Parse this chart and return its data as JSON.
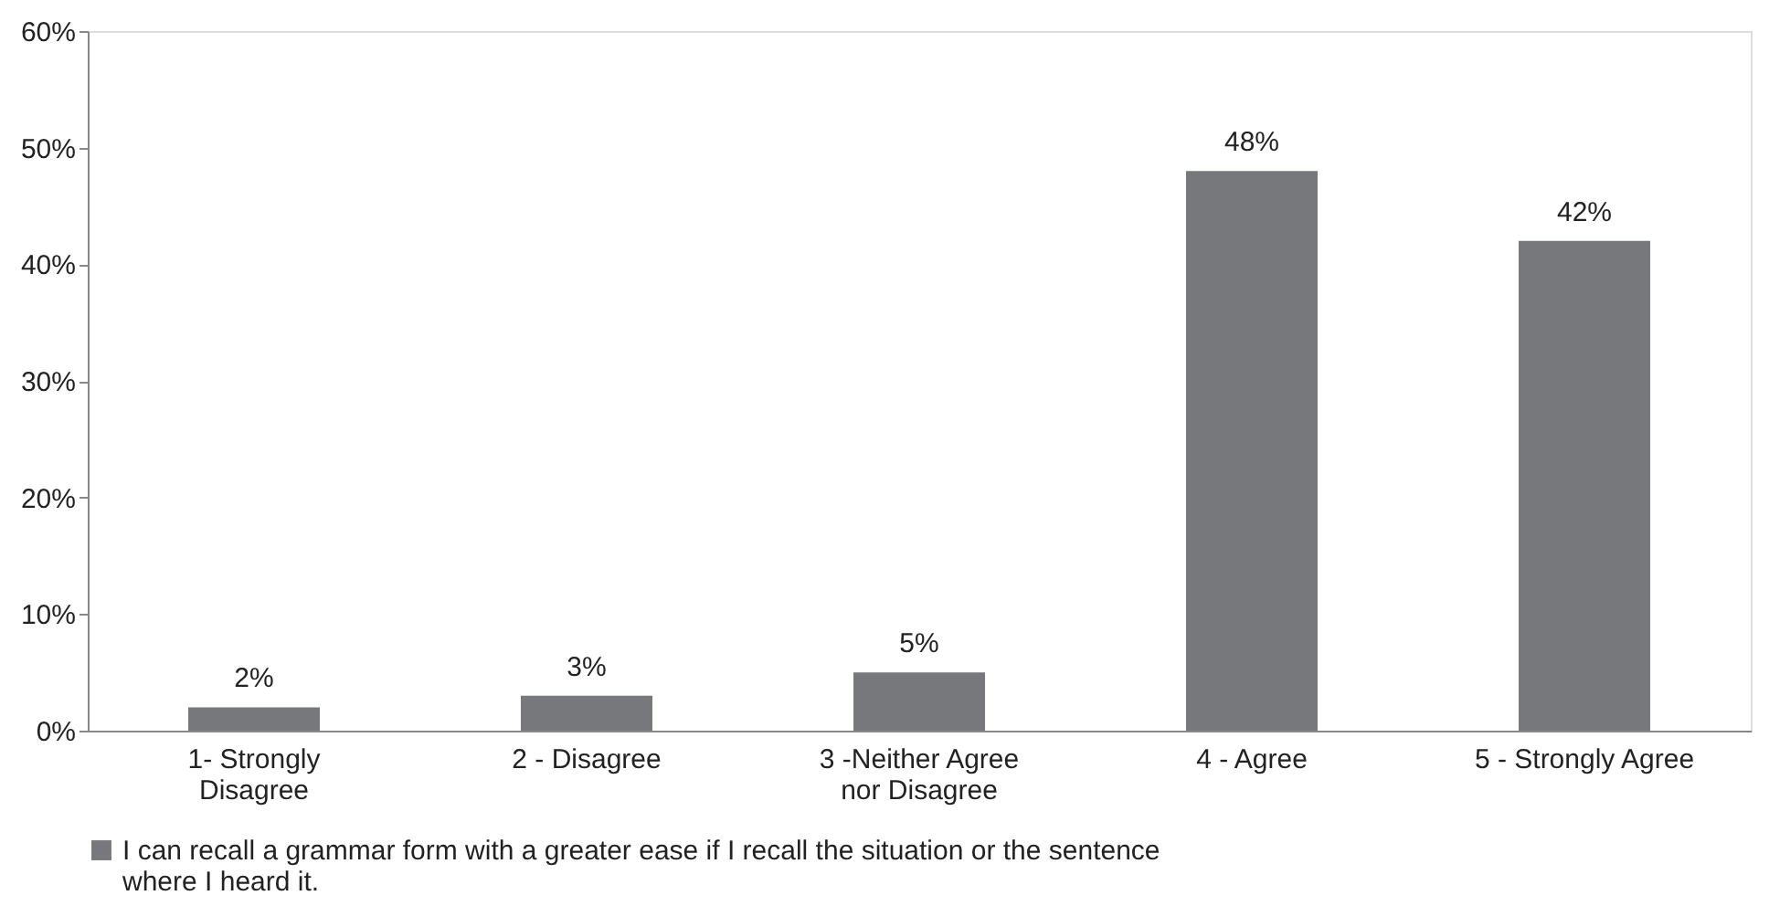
{
  "chart_data": {
    "type": "bar",
    "categories": [
      "1- Strongly\nDisagree",
      "2 - Disagree",
      "3 -Neither Agree\nnor Disagree",
      "4 - Agree",
      "5 - Strongly Agree"
    ],
    "series": [
      {
        "name": "I can recall a grammar form with a greater ease if I recall the situation or the sentence\nwhere I heard it.",
        "color": "#77787b",
        "values": [
          2,
          3,
          5,
          48,
          42
        ],
        "value_labels": [
          "2%",
          "3%",
          "5%",
          "48%",
          "42%"
        ]
      }
    ],
    "ylim": [
      0,
      60
    ],
    "yticks": [
      {
        "value": 0,
        "label": "0%"
      },
      {
        "value": 10,
        "label": "10%"
      },
      {
        "value": 20,
        "label": "20%"
      },
      {
        "value": 30,
        "label": "30%"
      },
      {
        "value": 40,
        "label": "40%"
      },
      {
        "value": 50,
        "label": "50%"
      },
      {
        "value": 60,
        "label": "60%"
      }
    ],
    "grid": false,
    "legend": "bottom left"
  }
}
